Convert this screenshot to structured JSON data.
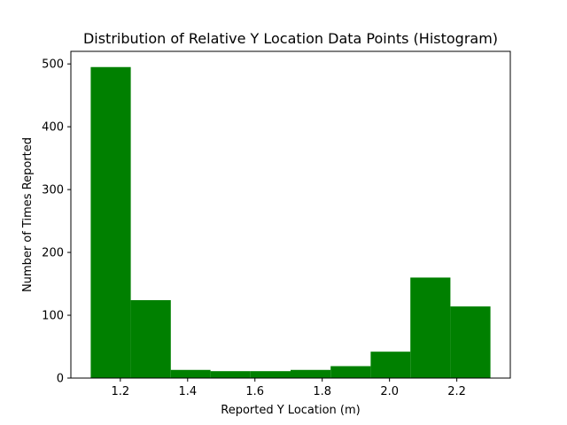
{
  "chart_data": {
    "type": "bar",
    "title": "Distribution of Relative Y Location Data Points (Histogram)",
    "xlabel": "Reported Y Location (m)",
    "ylabel": "Number of Times Reported",
    "bin_edges": [
      1.112,
      1.231,
      1.35,
      1.468,
      1.587,
      1.706,
      1.825,
      1.944,
      2.062,
      2.181,
      2.3
    ],
    "values": [
      495,
      124,
      13,
      11,
      11,
      13,
      19,
      42,
      160,
      114
    ],
    "xlim": [
      1.053,
      2.359
    ],
    "ylim": [
      0,
      520
    ],
    "xticks": [
      1.2,
      1.4,
      1.6,
      1.8,
      2.0,
      2.2
    ],
    "xtick_labels": [
      "1.2",
      "1.4",
      "1.6",
      "1.8",
      "2.0",
      "2.2"
    ],
    "yticks": [
      0,
      100,
      200,
      300,
      400,
      500
    ],
    "ytick_labels": [
      "0",
      "100",
      "200",
      "300",
      "400",
      "500"
    ],
    "grid": false,
    "colors": {
      "bar": "#008000",
      "axis": "#000000"
    }
  }
}
